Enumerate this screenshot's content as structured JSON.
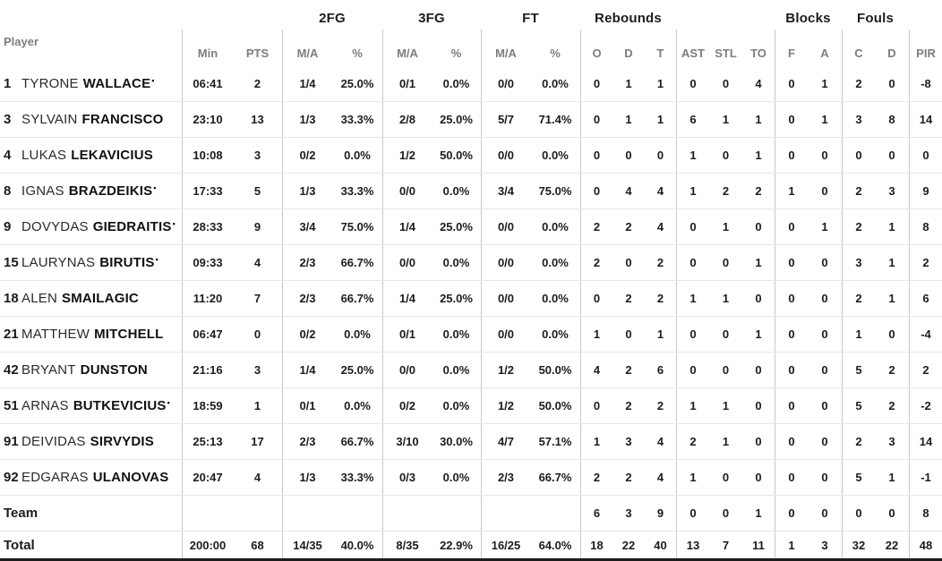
{
  "table": {
    "group_headers": {
      "fg2": "2FG",
      "fg3": "3FG",
      "ft": "FT",
      "rebounds": "Rebounds",
      "blocks": "Blocks",
      "fouls": "Fouls"
    },
    "column_headers": {
      "player": "Player",
      "min": "Min",
      "pts": "PTS",
      "ma": "M/A",
      "pct": "%",
      "o": "O",
      "d": "D",
      "t": "T",
      "ast": "AST",
      "stl": "STL",
      "to": "TO",
      "f": "F",
      "a": "A",
      "c": "C",
      "pir": "PIR"
    },
    "starter_marker": "•",
    "rows": [
      {
        "num": "1",
        "first": "TYRONE",
        "last": "WALLACE",
        "starter": true,
        "min": "06:41",
        "pts": "2",
        "fg2_ma": "1/4",
        "fg2_pct": "25.0%",
        "fg3_ma": "0/1",
        "fg3_pct": "0.0%",
        "ft_ma": "0/0",
        "ft_pct": "0.0%",
        "reb_o": "0",
        "reb_d": "1",
        "reb_t": "1",
        "ast": "0",
        "stl": "0",
        "to": "4",
        "blk_f": "0",
        "blk_a": "1",
        "foul_c": "2",
        "foul_d": "0",
        "pir": "-8"
      },
      {
        "num": "3",
        "first": "SYLVAIN",
        "last": "FRANCISCO",
        "starter": false,
        "min": "23:10",
        "pts": "13",
        "fg2_ma": "1/3",
        "fg2_pct": "33.3%",
        "fg3_ma": "2/8",
        "fg3_pct": "25.0%",
        "ft_ma": "5/7",
        "ft_pct": "71.4%",
        "reb_o": "0",
        "reb_d": "1",
        "reb_t": "1",
        "ast": "6",
        "stl": "1",
        "to": "1",
        "blk_f": "0",
        "blk_a": "1",
        "foul_c": "3",
        "foul_d": "8",
        "pir": "14"
      },
      {
        "num": "4",
        "first": "LUKAS",
        "last": "LEKAVICIUS",
        "starter": false,
        "min": "10:08",
        "pts": "3",
        "fg2_ma": "0/2",
        "fg2_pct": "0.0%",
        "fg3_ma": "1/2",
        "fg3_pct": "50.0%",
        "ft_ma": "0/0",
        "ft_pct": "0.0%",
        "reb_o": "0",
        "reb_d": "0",
        "reb_t": "0",
        "ast": "1",
        "stl": "0",
        "to": "1",
        "blk_f": "0",
        "blk_a": "0",
        "foul_c": "0",
        "foul_d": "0",
        "pir": "0"
      },
      {
        "num": "8",
        "first": "IGNAS",
        "last": "BRAZDEIKIS",
        "starter": true,
        "min": "17:33",
        "pts": "5",
        "fg2_ma": "1/3",
        "fg2_pct": "33.3%",
        "fg3_ma": "0/0",
        "fg3_pct": "0.0%",
        "ft_ma": "3/4",
        "ft_pct": "75.0%",
        "reb_o": "0",
        "reb_d": "4",
        "reb_t": "4",
        "ast": "1",
        "stl": "2",
        "to": "2",
        "blk_f": "1",
        "blk_a": "0",
        "foul_c": "2",
        "foul_d": "3",
        "pir": "9"
      },
      {
        "num": "9",
        "first": "DOVYDAS",
        "last": "GIEDRAITIS",
        "starter": true,
        "min": "28:33",
        "pts": "9",
        "fg2_ma": "3/4",
        "fg2_pct": "75.0%",
        "fg3_ma": "1/4",
        "fg3_pct": "25.0%",
        "ft_ma": "0/0",
        "ft_pct": "0.0%",
        "reb_o": "2",
        "reb_d": "2",
        "reb_t": "4",
        "ast": "0",
        "stl": "1",
        "to": "0",
        "blk_f": "0",
        "blk_a": "1",
        "foul_c": "2",
        "foul_d": "1",
        "pir": "8"
      },
      {
        "num": "15",
        "first": "LAURYNAS",
        "last": "BIRUTIS",
        "starter": true,
        "min": "09:33",
        "pts": "4",
        "fg2_ma": "2/3",
        "fg2_pct": "66.7%",
        "fg3_ma": "0/0",
        "fg3_pct": "0.0%",
        "ft_ma": "0/0",
        "ft_pct": "0.0%",
        "reb_o": "2",
        "reb_d": "0",
        "reb_t": "2",
        "ast": "0",
        "stl": "0",
        "to": "1",
        "blk_f": "0",
        "blk_a": "0",
        "foul_c": "3",
        "foul_d": "1",
        "pir": "2"
      },
      {
        "num": "18",
        "first": "ALEN",
        "last": "SMAILAGIC",
        "starter": false,
        "min": "11:20",
        "pts": "7",
        "fg2_ma": "2/3",
        "fg2_pct": "66.7%",
        "fg3_ma": "1/4",
        "fg3_pct": "25.0%",
        "ft_ma": "0/0",
        "ft_pct": "0.0%",
        "reb_o": "0",
        "reb_d": "2",
        "reb_t": "2",
        "ast": "1",
        "stl": "1",
        "to": "0",
        "blk_f": "0",
        "blk_a": "0",
        "foul_c": "2",
        "foul_d": "1",
        "pir": "6"
      },
      {
        "num": "21",
        "first": "MATTHEW",
        "last": "MITCHELL",
        "starter": false,
        "min": "06:47",
        "pts": "0",
        "fg2_ma": "0/2",
        "fg2_pct": "0.0%",
        "fg3_ma": "0/1",
        "fg3_pct": "0.0%",
        "ft_ma": "0/0",
        "ft_pct": "0.0%",
        "reb_o": "1",
        "reb_d": "0",
        "reb_t": "1",
        "ast": "0",
        "stl": "0",
        "to": "1",
        "blk_f": "0",
        "blk_a": "0",
        "foul_c": "1",
        "foul_d": "0",
        "pir": "-4"
      },
      {
        "num": "42",
        "first": "BRYANT",
        "last": "DUNSTON",
        "starter": false,
        "min": "21:16",
        "pts": "3",
        "fg2_ma": "1/4",
        "fg2_pct": "25.0%",
        "fg3_ma": "0/0",
        "fg3_pct": "0.0%",
        "ft_ma": "1/2",
        "ft_pct": "50.0%",
        "reb_o": "4",
        "reb_d": "2",
        "reb_t": "6",
        "ast": "0",
        "stl": "0",
        "to": "0",
        "blk_f": "0",
        "blk_a": "0",
        "foul_c": "5",
        "foul_d": "2",
        "pir": "2"
      },
      {
        "num": "51",
        "first": "ARNAS",
        "last": "BUTKEVICIUS",
        "starter": true,
        "min": "18:59",
        "pts": "1",
        "fg2_ma": "0/1",
        "fg2_pct": "0.0%",
        "fg3_ma": "0/2",
        "fg3_pct": "0.0%",
        "ft_ma": "1/2",
        "ft_pct": "50.0%",
        "reb_o": "0",
        "reb_d": "2",
        "reb_t": "2",
        "ast": "1",
        "stl": "1",
        "to": "0",
        "blk_f": "0",
        "blk_a": "0",
        "foul_c": "5",
        "foul_d": "2",
        "pir": "-2"
      },
      {
        "num": "91",
        "first": "DEIVIDAS",
        "last": "SIRVYDIS",
        "starter": false,
        "min": "25:13",
        "pts": "17",
        "fg2_ma": "2/3",
        "fg2_pct": "66.7%",
        "fg3_ma": "3/10",
        "fg3_pct": "30.0%",
        "ft_ma": "4/7",
        "ft_pct": "57.1%",
        "reb_o": "1",
        "reb_d": "3",
        "reb_t": "4",
        "ast": "2",
        "stl": "1",
        "to": "0",
        "blk_f": "0",
        "blk_a": "0",
        "foul_c": "2",
        "foul_d": "3",
        "pir": "14"
      },
      {
        "num": "92",
        "first": "EDGARAS",
        "last": "ULANOVAS",
        "starter": false,
        "min": "20:47",
        "pts": "4",
        "fg2_ma": "1/3",
        "fg2_pct": "33.3%",
        "fg3_ma": "0/3",
        "fg3_pct": "0.0%",
        "ft_ma": "2/3",
        "ft_pct": "66.7%",
        "reb_o": "2",
        "reb_d": "2",
        "reb_t": "4",
        "ast": "1",
        "stl": "0",
        "to": "0",
        "blk_f": "0",
        "blk_a": "0",
        "foul_c": "5",
        "foul_d": "1",
        "pir": "-1"
      }
    ],
    "team_row": {
      "label": "Team",
      "min": "",
      "pts": "",
      "fg2_ma": "",
      "fg2_pct": "",
      "fg3_ma": "",
      "fg3_pct": "",
      "ft_ma": "",
      "ft_pct": "",
      "reb_o": "6",
      "reb_d": "3",
      "reb_t": "9",
      "ast": "0",
      "stl": "0",
      "to": "1",
      "blk_f": "0",
      "blk_a": "0",
      "foul_c": "0",
      "foul_d": "0",
      "pir": "8"
    },
    "total_row": {
      "label": "Total",
      "min": "200:00",
      "pts": "68",
      "fg2_ma": "14/35",
      "fg2_pct": "40.0%",
      "fg3_ma": "8/35",
      "fg3_pct": "22.9%",
      "ft_ma": "16/25",
      "ft_pct": "64.0%",
      "reb_o": "18",
      "reb_d": "22",
      "reb_t": "40",
      "ast": "13",
      "stl": "7",
      "to": "11",
      "blk_f": "1",
      "blk_a": "3",
      "foul_c": "32",
      "foul_d": "22",
      "pir": "48"
    }
  },
  "colors": {
    "text": "#1c1c1c",
    "header_gray": "#7d7d7d",
    "vertical_divider": "#c9c9c9",
    "horizontal_divider": "#e7e7e7",
    "bottom_rule": "#1c1c1c"
  }
}
